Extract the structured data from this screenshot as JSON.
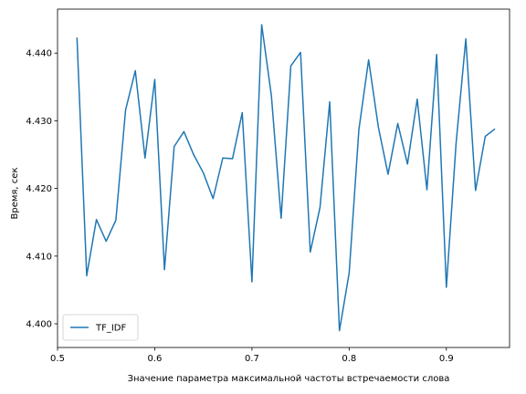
{
  "chart_data": {
    "type": "line",
    "title": "",
    "xlabel": "Значение параметра максимальной частоты встречаемости слова",
    "ylabel": "Время, сек",
    "xlim": [
      0.5,
      0.965
    ],
    "ylim": [
      4.3965,
      4.4465
    ],
    "xticks": [
      {
        "value": 0.5,
        "label": "0.5"
      },
      {
        "value": 0.6,
        "label": "0.6"
      },
      {
        "value": 0.7,
        "label": "0.7"
      },
      {
        "value": 0.8,
        "label": "0.8"
      },
      {
        "value": 0.9,
        "label": "0.9"
      }
    ],
    "yticks": [
      {
        "value": 4.4,
        "label": "4.400"
      },
      {
        "value": 4.41,
        "label": "4.410"
      },
      {
        "value": 4.42,
        "label": "4.420"
      },
      {
        "value": 4.43,
        "label": "4.430"
      },
      {
        "value": 4.44,
        "label": "4.440"
      }
    ],
    "grid": false,
    "legend_position": "lower-left",
    "series": [
      {
        "name": "TF_IDF",
        "color": "#1f77b4",
        "x": [
          0.52,
          0.53,
          0.54,
          0.55,
          0.56,
          0.57,
          0.58,
          0.59,
          0.6,
          0.61,
          0.62,
          0.63,
          0.64,
          0.65,
          0.66,
          0.67,
          0.68,
          0.69,
          0.7,
          0.71,
          0.72,
          0.73,
          0.74,
          0.75,
          0.76,
          0.77,
          0.78,
          0.79,
          0.8,
          0.81,
          0.82,
          0.83,
          0.84,
          0.85,
          0.86,
          0.87,
          0.88,
          0.89,
          0.9,
          0.91,
          0.92,
          0.93,
          0.94,
          0.95
        ],
        "y": [
          4.4423,
          4.4071,
          4.4154,
          4.4122,
          4.4153,
          4.4316,
          4.4374,
          4.4245,
          4.4361,
          4.408,
          4.4262,
          4.4284,
          4.425,
          4.4223,
          4.4185,
          4.4245,
          4.4244,
          4.4312,
          4.4062,
          4.4442,
          4.4337,
          4.4156,
          4.4381,
          4.4401,
          4.4106,
          4.4172,
          4.4328,
          4.399,
          4.4075,
          4.4287,
          4.439,
          4.4291,
          4.4221,
          4.4296,
          4.4236,
          4.4332,
          4.4198,
          4.4398,
          4.4054,
          4.4267,
          4.4421,
          4.4197,
          4.4277,
          4.4288
        ]
      }
    ]
  }
}
